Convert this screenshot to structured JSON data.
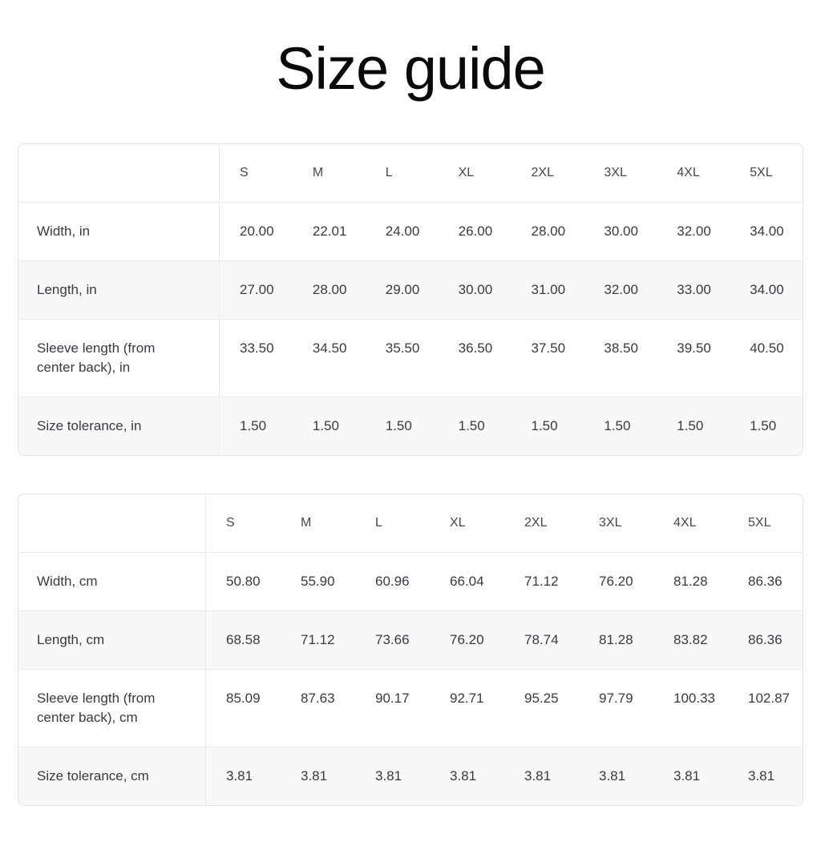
{
  "page": {
    "title": "Size guide"
  },
  "colors": {
    "title": "#0a0a0a",
    "text": "#363b40",
    "header_text": "#42484d",
    "border": "#e1e3e3",
    "row_line": "#e9ebeb",
    "stripe": "#f7f8f8",
    "page_bg": "#ffffff"
  },
  "tables": [
    {
      "name": "inches",
      "columns": [
        "",
        "S",
        "M",
        "L",
        "XL",
        "2XL",
        "3XL",
        "4XL",
        "5XL"
      ],
      "rows": [
        {
          "label": "Width, in",
          "values": [
            "20.00",
            "22.01",
            "24.00",
            "26.00",
            "28.00",
            "30.00",
            "32.00",
            "34.00"
          ]
        },
        {
          "label": "Length, in",
          "values": [
            "27.00",
            "28.00",
            "29.00",
            "30.00",
            "31.00",
            "32.00",
            "33.00",
            "34.00"
          ]
        },
        {
          "label": "Sleeve length (from center back), in",
          "values": [
            "33.50",
            "34.50",
            "35.50",
            "36.50",
            "37.50",
            "38.50",
            "39.50",
            "40.50"
          ]
        },
        {
          "label": "Size tolerance, in",
          "values": [
            "1.50",
            "1.50",
            "1.50",
            "1.50",
            "1.50",
            "1.50",
            "1.50",
            "1.50"
          ]
        }
      ]
    },
    {
      "name": "centimeters",
      "columns": [
        "",
        "S",
        "M",
        "L",
        "XL",
        "2XL",
        "3XL",
        "4XL",
        "5XL"
      ],
      "rows": [
        {
          "label": "Width, cm",
          "values": [
            "50.80",
            "55.90",
            "60.96",
            "66.04",
            "71.12",
            "76.20",
            "81.28",
            "86.36"
          ]
        },
        {
          "label": "Length, cm",
          "values": [
            "68.58",
            "71.12",
            "73.66",
            "76.20",
            "78.74",
            "81.28",
            "83.82",
            "86.36"
          ]
        },
        {
          "label": "Sleeve length (from center back), cm",
          "values": [
            "85.09",
            "87.63",
            "90.17",
            "92.71",
            "95.25",
            "97.79",
            "100.33",
            "102.87"
          ]
        },
        {
          "label": "Size tolerance, cm",
          "values": [
            "3.81",
            "3.81",
            "3.81",
            "3.81",
            "3.81",
            "3.81",
            "3.81",
            "3.81"
          ]
        }
      ]
    }
  ]
}
